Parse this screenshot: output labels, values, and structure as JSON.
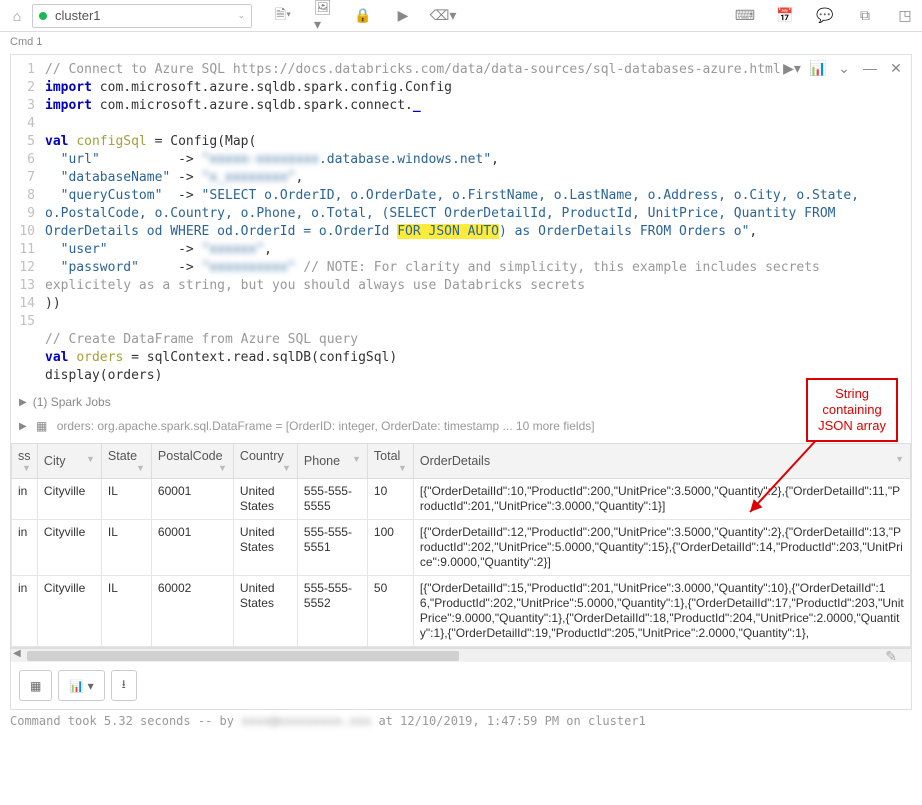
{
  "toolbar": {
    "cluster_label": "cluster1"
  },
  "cmd_label": "Cmd 1",
  "code": {
    "lines": [
      {
        "n": 1,
        "segs": [
          {
            "c": "tok-comment",
            "t": "// Connect to Azure SQL https://docs.databricks.com/data/data-sources/sql-databases-azure.html"
          }
        ]
      },
      {
        "n": 2,
        "segs": [
          {
            "c": "tok-keyword",
            "t": "import"
          },
          {
            "c": "",
            "t": " com.microsoft.azure.sqldb.spark.config.Config"
          }
        ]
      },
      {
        "n": 3,
        "segs": [
          {
            "c": "tok-keyword",
            "t": "import"
          },
          {
            "c": "",
            "t": " com.microsoft.azure.sqldb.spark.connect."
          },
          {
            "c": "tok-keyword",
            "t": "_"
          }
        ]
      },
      {
        "n": 4,
        "segs": [
          {
            "c": "",
            "t": ""
          }
        ]
      },
      {
        "n": 5,
        "segs": [
          {
            "c": "tok-keyword",
            "t": "val"
          },
          {
            "c": "",
            "t": " "
          },
          {
            "c": "tok-varname",
            "t": "configSql"
          },
          {
            "c": "",
            "t": " = Config(Map("
          }
        ]
      },
      {
        "n": 6,
        "segs": [
          {
            "c": "",
            "t": "  "
          },
          {
            "c": "tok-string",
            "t": "\"url\""
          },
          {
            "c": "",
            "t": "          -> "
          },
          {
            "c": "tok-string blur",
            "t": "\"xxxxx-xxxxxxxx"
          },
          {
            "c": "tok-string",
            "t": ".database.windows.net\""
          },
          {
            "c": "",
            "t": ","
          }
        ]
      },
      {
        "n": 7,
        "segs": [
          {
            "c": "",
            "t": "  "
          },
          {
            "c": "tok-string",
            "t": "\"databaseName\""
          },
          {
            "c": "",
            "t": " -> "
          },
          {
            "c": "tok-string blur",
            "t": "\"x_xxxxxxxx\""
          },
          {
            "c": "",
            "t": ","
          }
        ]
      },
      {
        "n": 8,
        "segs": [
          {
            "c": "",
            "t": "  "
          },
          {
            "c": "tok-string",
            "t": "\"queryCustom\""
          },
          {
            "c": "",
            "t": "  -> "
          },
          {
            "c": "tok-string",
            "t": "\"SELECT o.OrderID, o.OrderDate, o.FirstName, o.LastName, o.Address, o.City, o.State, o.PostalCode, o.Country, o.Phone, o.Total, (SELECT OrderDetailId, ProductId, UnitPrice, Quantity FROM OrderDetails od WHERE od.OrderId = o.OrderId "
          },
          {
            "c": "tok-string hl",
            "t": "FOR JSON AUTO"
          },
          {
            "c": "tok-string",
            "t": ") as OrderDetails FROM Orders o\""
          },
          {
            "c": "",
            "t": ","
          }
        ]
      },
      {
        "n": 9,
        "segs": [
          {
            "c": "",
            "t": "  "
          },
          {
            "c": "tok-string",
            "t": "\"user\""
          },
          {
            "c": "",
            "t": "         -> "
          },
          {
            "c": "tok-string blur",
            "t": "\"xxxxxx\""
          },
          {
            "c": "",
            "t": ","
          }
        ]
      },
      {
        "n": 10,
        "segs": [
          {
            "c": "",
            "t": "  "
          },
          {
            "c": "tok-string",
            "t": "\"password\""
          },
          {
            "c": "",
            "t": "     -> "
          },
          {
            "c": "tok-string blur",
            "t": "\"xxxxxxxxxx\""
          },
          {
            "c": "",
            "t": " "
          },
          {
            "c": "tok-comment",
            "t": "// NOTE: For clarity and simplicity, this example includes secrets explicitely as a string, but you should always use Databricks secrets"
          }
        ]
      },
      {
        "n": 11,
        "segs": [
          {
            "c": "",
            "t": "))"
          }
        ]
      },
      {
        "n": 12,
        "segs": [
          {
            "c": "",
            "t": ""
          }
        ]
      },
      {
        "n": 13,
        "segs": [
          {
            "c": "tok-comment",
            "t": "// Create DataFrame from Azure SQL query"
          }
        ]
      },
      {
        "n": 14,
        "segs": [
          {
            "c": "tok-keyword",
            "t": "val"
          },
          {
            "c": "",
            "t": " "
          },
          {
            "c": "tok-varname",
            "t": "orders"
          },
          {
            "c": "",
            "t": " = sqlContext.read.sqlDB(configSql)"
          }
        ]
      },
      {
        "n": 15,
        "segs": [
          {
            "c": "",
            "t": "display(orders)"
          }
        ]
      }
    ]
  },
  "meta": {
    "spark_jobs_label": "(1) Spark Jobs",
    "schema_line": "orders:  org.apache.spark.sql.DataFrame = [OrderID: integer, OrderDate: timestamp ... 10 more fields]"
  },
  "table": {
    "columns": [
      "ss",
      "City",
      "State",
      "PostalCode",
      "Country",
      "Phone",
      "Total",
      "OrderDetails"
    ],
    "rows": [
      {
        "ss": "in",
        "City": "Cityville",
        "State": "IL",
        "PostalCode": "60001",
        "Country": "United States",
        "Phone": "555-555-5555",
        "Total": "10",
        "OrderDetails": "[{\"OrderDetailId\":10,\"ProductId\":200,\"UnitPrice\":3.5000,\"Quantity\":2},{\"OrderDetailId\":11,\"ProductId\":201,\"UnitPrice\":3.0000,\"Quantity\":1}]"
      },
      {
        "ss": "in",
        "City": "Cityville",
        "State": "IL",
        "PostalCode": "60001",
        "Country": "United States",
        "Phone": "555-555-5551",
        "Total": "100",
        "OrderDetails": "[{\"OrderDetailId\":12,\"ProductId\":200,\"UnitPrice\":3.5000,\"Quantity\":2},{\"OrderDetailId\":13,\"ProductId\":202,\"UnitPrice\":5.0000,\"Quantity\":15},{\"OrderDetailId\":14,\"ProductId\":203,\"UnitPrice\":9.0000,\"Quantity\":2}]"
      },
      {
        "ss": "in",
        "City": "Cityville",
        "State": "IL",
        "PostalCode": "60002",
        "Country": "United States",
        "Phone": "555-555-5552",
        "Total": "50",
        "OrderDetails": "[{\"OrderDetailId\":15,\"ProductId\":201,\"UnitPrice\":3.0000,\"Quantity\":10},{\"OrderDetailId\":16,\"ProductId\":202,\"UnitPrice\":5.0000,\"Quantity\":1},{\"OrderDetailId\":17,\"ProductId\":203,\"UnitPrice\":9.0000,\"Quantity\":1},{\"OrderDetailId\":18,\"ProductId\":204,\"UnitPrice\":2.0000,\"Quantity\":1},{\"OrderDetailId\":19,\"ProductId\":205,\"UnitPrice\":2.0000,\"Quantity\":1},"
      }
    ],
    "col_widths": [
      "24px",
      "64px",
      "50px",
      "82px",
      "64px",
      "70px",
      "46px",
      "auto"
    ]
  },
  "callout": {
    "line1": "String",
    "line2": "containing",
    "line3": "JSON array"
  },
  "footer": {
    "text_prefix": "Command took 5.32 seconds -- by ",
    "text_suffix": " at 12/10/2019, 1:47:59 PM on cluster1"
  }
}
